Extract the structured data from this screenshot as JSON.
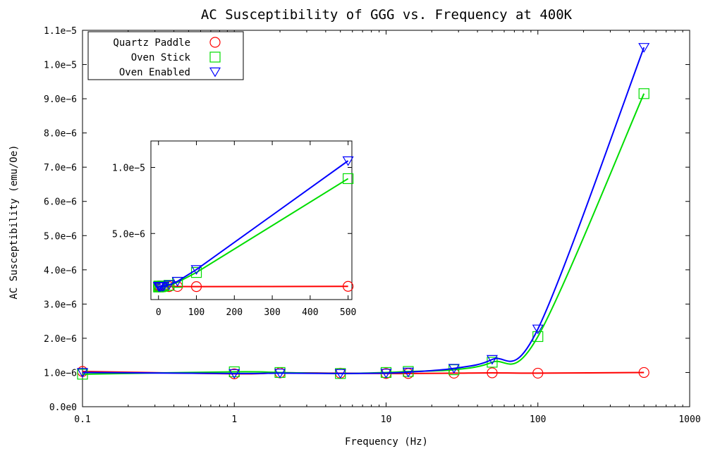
{
  "chart_data": [
    {
      "type": "scatter",
      "title": "AC Susceptibility of GGG vs. Frequency at 400K",
      "xlabel": "Frequency (Hz)",
      "ylabel": "AC Susceptibility (emu/Oe)",
      "xscale": "log",
      "xlim": [
        0.1,
        1000
      ],
      "ylim": [
        0,
        1.1e-05
      ],
      "xticks": [
        0.1,
        1,
        10,
        100,
        1000
      ],
      "xtick_labels": [
        "0.1",
        "1",
        "10",
        "100",
        "1000"
      ],
      "yticks": [
        0,
        1e-06,
        2e-06,
        3e-06,
        4e-06,
        5e-06,
        6e-06,
        7e-06,
        8e-06,
        9e-06,
        1e-05,
        1.1e-05
      ],
      "ytick_labels": [
        "0.0e0",
        "1.0e−6",
        "2.0e−6",
        "3.0e−6",
        "4.0e−6",
        "5.0e−6",
        "6.0e−6",
        "7.0e−6",
        "8.0e−6",
        "9.0e−6",
        "1.0e−5",
        "1.1e−5"
      ],
      "legend_position": "top-left",
      "grid": false,
      "series": [
        {
          "name": "Quartz Paddle",
          "marker": "circle",
          "color": "#ff0000",
          "x": [
            0.1,
            1,
            2,
            5,
            10,
            14,
            28,
            50,
            100,
            500
          ],
          "y": [
            1.03e-06,
            9.6e-07,
            9.9e-07,
            9.8e-07,
            9.7e-07,
            9.7e-07,
            9.8e-07,
            9.9e-07,
            9.8e-07,
            1e-06
          ]
        },
        {
          "name": "Oven Stick",
          "marker": "square",
          "color": "#00dd00",
          "x": [
            0.1,
            1,
            2,
            5,
            10,
            14,
            28,
            50,
            100,
            500
          ],
          "y": [
            9.5e-07,
            1.02e-06,
            1e-06,
            9.7e-07,
            1e-06,
            1.03e-06,
            1.08e-06,
            1.3e-06,
            2.05e-06,
            9.15e-06
          ]
        },
        {
          "name": "Oven Enabled",
          "marker": "triangle-down",
          "color": "#0000ff",
          "x": [
            0.1,
            1,
            2,
            5,
            10,
            14,
            28,
            50,
            100,
            500
          ],
          "y": [
            1e-06,
            9.7e-07,
            9.8e-07,
            9.7e-07,
            9.8e-07,
            1.01e-06,
            1.12e-06,
            1.38e-06,
            2.27e-06,
            1.05e-05
          ]
        }
      ]
    },
    {
      "type": "scatter",
      "title": "",
      "xlabel": "",
      "ylabel": "",
      "xscale": "linear",
      "xlim": [
        -20,
        510
      ],
      "ylim": [
        0,
        1.2e-05
      ],
      "xticks": [
        0,
        100,
        200,
        300,
        400,
        500
      ],
      "xtick_labels": [
        "0",
        "100",
        "200",
        "300",
        "400",
        "500"
      ],
      "yticks": [
        5e-06,
        1e-05
      ],
      "ytick_labels": [
        "5.0e−6",
        "1.0e−5"
      ],
      "series": [
        {
          "name": "Quartz Paddle",
          "marker": "circle",
          "color": "#ff0000",
          "x": [
            0.1,
            1,
            2,
            5,
            10,
            14,
            28,
            50,
            100,
            500
          ],
          "y": [
            1.03e-06,
            9.6e-07,
            9.9e-07,
            9.8e-07,
            9.7e-07,
            9.7e-07,
            9.8e-07,
            9.9e-07,
            9.8e-07,
            1e-06
          ]
        },
        {
          "name": "Oven Stick",
          "marker": "square",
          "color": "#00dd00",
          "x": [
            0.1,
            1,
            2,
            5,
            10,
            14,
            28,
            50,
            100,
            500
          ],
          "y": [
            9.5e-07,
            1.02e-06,
            1e-06,
            9.7e-07,
            1e-06,
            1.03e-06,
            1.08e-06,
            1.3e-06,
            2.05e-06,
            9.15e-06
          ]
        },
        {
          "name": "Oven Enabled",
          "marker": "triangle-down",
          "color": "#0000ff",
          "x": [
            0.1,
            1,
            2,
            5,
            10,
            14,
            28,
            50,
            100,
            500
          ],
          "y": [
            1e-06,
            9.7e-07,
            9.8e-07,
            9.7e-07,
            9.8e-07,
            1.01e-06,
            1.12e-06,
            1.38e-06,
            2.27e-06,
            1.05e-05
          ]
        }
      ]
    }
  ]
}
